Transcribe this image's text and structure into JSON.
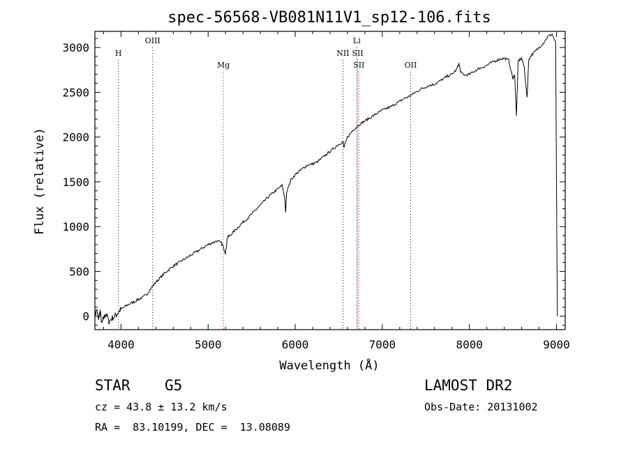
{
  "chart_data": {
    "type": "line",
    "title": "spec-56568-VB081N11V1_sp12-106.fits",
    "xlabel": "Wavelength (Å)",
    "ylabel": "Flux (relative)",
    "xlim": [
      3700,
      9100
    ],
    "ylim": [
      -150,
      3180
    ],
    "x_ticks": [
      4000,
      5000,
      6000,
      7000,
      8000,
      9000
    ],
    "y_ticks": [
      0,
      500,
      1000,
      1500,
      2000,
      2500,
      3000
    ],
    "grid": false,
    "series": [
      {
        "color": "#000000",
        "points": [
          [
            3700,
            0
          ],
          [
            3720,
            80
          ],
          [
            3740,
            -40
          ],
          [
            3760,
            60
          ],
          [
            3780,
            -90
          ],
          [
            3800,
            -20
          ],
          [
            3830,
            30
          ],
          [
            3860,
            -60
          ],
          [
            3900,
            -20
          ],
          [
            3940,
            10
          ],
          [
            3980,
            60
          ],
          [
            4000,
            80
          ],
          [
            4050,
            110
          ],
          [
            4100,
            140
          ],
          [
            4150,
            160
          ],
          [
            4200,
            190
          ],
          [
            4250,
            210
          ],
          [
            4300,
            250
          ],
          [
            4350,
            320
          ],
          [
            4400,
            380
          ],
          [
            4450,
            430
          ],
          [
            4500,
            480
          ],
          [
            4550,
            520
          ],
          [
            4600,
            560
          ],
          [
            4650,
            590
          ],
          [
            4700,
            620
          ],
          [
            4750,
            650
          ],
          [
            4800,
            680
          ],
          [
            4850,
            710
          ],
          [
            4900,
            740
          ],
          [
            4950,
            770
          ],
          [
            5000,
            800
          ],
          [
            5050,
            820
          ],
          [
            5100,
            840
          ],
          [
            5150,
            820
          ],
          [
            5180,
            760
          ],
          [
            5200,
            700
          ],
          [
            5220,
            880
          ],
          [
            5250,
            900
          ],
          [
            5300,
            950
          ],
          [
            5350,
            1000
          ],
          [
            5400,
            1050
          ],
          [
            5450,
            1090
          ],
          [
            5500,
            1140
          ],
          [
            5550,
            1190
          ],
          [
            5600,
            1240
          ],
          [
            5650,
            1290
          ],
          [
            5700,
            1340
          ],
          [
            5750,
            1380
          ],
          [
            5800,
            1420
          ],
          [
            5850,
            1460
          ],
          [
            5880,
            1320
          ],
          [
            5890,
            1150
          ],
          [
            5900,
            1380
          ],
          [
            5950,
            1520
          ],
          [
            6000,
            1580
          ],
          [
            6050,
            1620
          ],
          [
            6100,
            1660
          ],
          [
            6150,
            1690
          ],
          [
            6200,
            1700
          ],
          [
            6250,
            1720
          ],
          [
            6300,
            1760
          ],
          [
            6350,
            1800
          ],
          [
            6400,
            1840
          ],
          [
            6450,
            1880
          ],
          [
            6500,
            1920
          ],
          [
            6550,
            1950
          ],
          [
            6560,
            1880
          ],
          [
            6600,
            2000
          ],
          [
            6650,
            2060
          ],
          [
            6700,
            2110
          ],
          [
            6750,
            2150
          ],
          [
            6800,
            2180
          ],
          [
            6850,
            2210
          ],
          [
            6900,
            2240
          ],
          [
            6950,
            2270
          ],
          [
            7000,
            2300
          ],
          [
            7050,
            2320
          ],
          [
            7100,
            2340
          ],
          [
            7150,
            2370
          ],
          [
            7200,
            2400
          ],
          [
            7250,
            2430
          ],
          [
            7300,
            2450
          ],
          [
            7350,
            2480
          ],
          [
            7400,
            2510
          ],
          [
            7450,
            2540
          ],
          [
            7500,
            2560
          ],
          [
            7550,
            2580
          ],
          [
            7600,
            2590
          ],
          [
            7650,
            2620
          ],
          [
            7700,
            2650
          ],
          [
            7750,
            2680
          ],
          [
            7800,
            2700
          ],
          [
            7850,
            2750
          ],
          [
            7880,
            2820
          ],
          [
            7900,
            2720
          ],
          [
            7950,
            2690
          ],
          [
            8000,
            2700
          ],
          [
            8050,
            2730
          ],
          [
            8100,
            2760
          ],
          [
            8150,
            2780
          ],
          [
            8200,
            2800
          ],
          [
            8250,
            2830
          ],
          [
            8300,
            2850
          ],
          [
            8350,
            2870
          ],
          [
            8400,
            2880
          ],
          [
            8450,
            2860
          ],
          [
            8500,
            2650
          ],
          [
            8520,
            2700
          ],
          [
            8540,
            2230
          ],
          [
            8560,
            2850
          ],
          [
            8600,
            2880
          ],
          [
            8630,
            2780
          ],
          [
            8662,
            2430
          ],
          [
            8680,
            2850
          ],
          [
            8700,
            2900
          ],
          [
            8750,
            2950
          ],
          [
            8800,
            3000
          ],
          [
            8850,
            3050
          ],
          [
            8900,
            3120
          ],
          [
            8950,
            3150
          ],
          [
            8990,
            3050
          ],
          [
            9000,
            1500
          ],
          [
            9010,
            0
          ]
        ]
      }
    ],
    "line_markers": [
      {
        "label": "H",
        "x": 3970,
        "color": "#000000",
        "row": 2
      },
      {
        "label": "OIII",
        "x": 4363,
        "color": "#000000",
        "row": 1
      },
      {
        "label": "Mg",
        "x": 5175,
        "color": "#c00000",
        "row": 3
      },
      {
        "label": "NII",
        "x": 6548,
        "color": "#000000",
        "row": 2
      },
      {
        "label": "Li",
        "x": 6707,
        "color": "#000000",
        "row": 1
      },
      {
        "label": "SII",
        "x": 6717,
        "color": "#c00000",
        "row": 2
      },
      {
        "label": "SII",
        "x": 6731,
        "color": "#c00000",
        "row": 3
      },
      {
        "label": "OII",
        "x": 7325,
        "color": "#000000",
        "row": 3
      }
    ]
  },
  "info": {
    "object_class": "STAR",
    "subclass": "G5",
    "survey": "LAMOST DR2",
    "cz": "cz = 43.8 ± 13.2 km/s",
    "obs_date": "Obs-Date: 20131002",
    "coords": "RA =  83.10199, DEC =  13.08089"
  }
}
